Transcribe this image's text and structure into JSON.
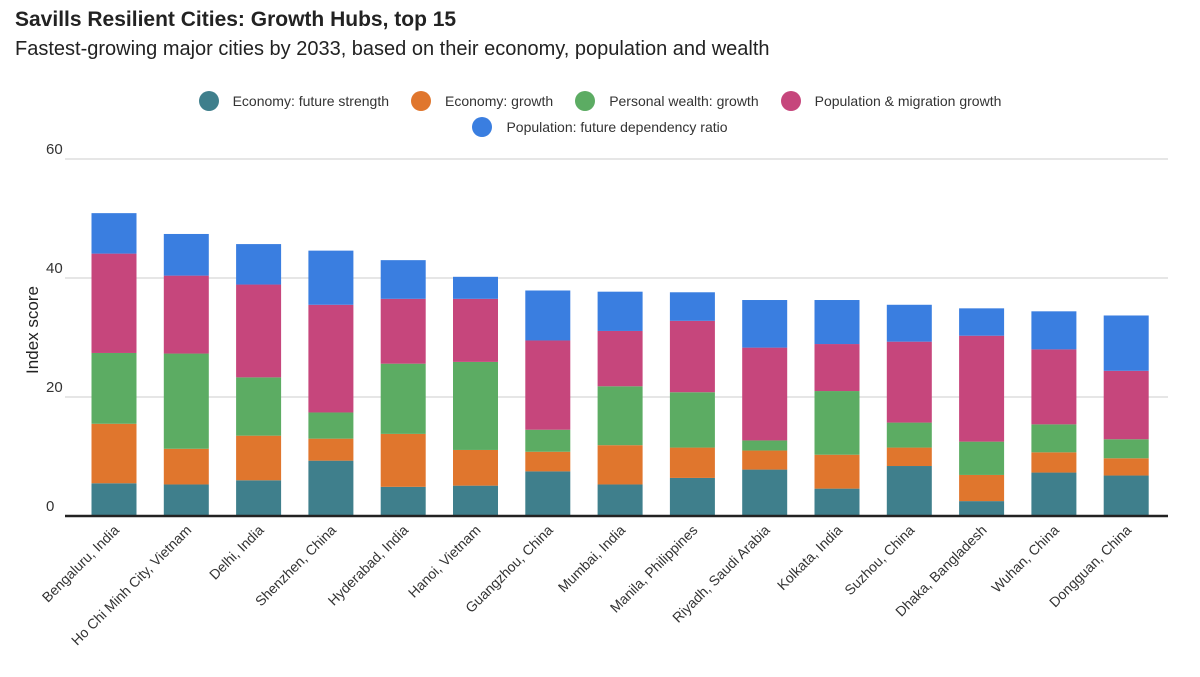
{
  "header": {
    "title": "Savills Resilient Cities: Growth Hubs, top 15",
    "subtitle": "Fastest-growing major cities by 2033, based on their economy, population and wealth"
  },
  "chart_data": {
    "type": "bar",
    "stacked": true,
    "ylabel": "Index score",
    "xlabel": "",
    "ylim": [
      0,
      60
    ],
    "yticks": [
      0,
      20,
      40,
      60
    ],
    "grid": true,
    "legend_position": "top-center",
    "categories": [
      "Bengaluru, India",
      "Ho Chi Minh City, Vietnam",
      "Delhi, India",
      "Shenzhen, China",
      "Hyderabad, India",
      "Hanoi, Vietnam",
      "Guangzhou, China",
      "Mumbai, India",
      "Manila, Philippines",
      "Riyadh, Saudi Arabia",
      "Kolkata, India",
      "Suzhou, China",
      "Dhaka, Bangladesh",
      "Wuhan, China",
      "Dongguan, China"
    ],
    "series": [
      {
        "name": "Economy: future strength",
        "color": "#3f7f8c",
        "values": [
          5.5,
          5.3,
          6.0,
          9.3,
          4.9,
          5.1,
          7.5,
          5.3,
          6.4,
          7.8,
          4.6,
          8.4,
          2.5,
          7.3,
          6.8
        ]
      },
      {
        "name": "Economy: growth",
        "color": "#e0762d",
        "values": [
          10.0,
          6.0,
          7.5,
          3.7,
          8.9,
          6.0,
          3.3,
          6.6,
          5.1,
          3.2,
          5.7,
          3.1,
          4.4,
          3.4,
          2.9
        ]
      },
      {
        "name": "Personal wealth: growth",
        "color": "#5cac63",
        "values": [
          11.9,
          16.0,
          9.8,
          4.4,
          11.8,
          14.8,
          3.7,
          9.9,
          9.3,
          1.7,
          10.7,
          4.2,
          5.6,
          4.7,
          3.2
        ]
      },
      {
        "name": "Population & migration growth",
        "color": "#c6467c",
        "values": [
          16.7,
          13.1,
          15.6,
          18.1,
          10.9,
          10.6,
          15.0,
          9.3,
          12.0,
          15.6,
          7.9,
          13.6,
          17.8,
          12.6,
          11.5
        ]
      },
      {
        "name": "Population: future dependency ratio",
        "color": "#3a7ee0",
        "values": [
          6.8,
          7.0,
          6.8,
          9.1,
          6.5,
          3.7,
          8.4,
          6.6,
          4.8,
          8.0,
          7.4,
          6.2,
          4.6,
          6.4,
          9.3
        ]
      }
    ]
  }
}
